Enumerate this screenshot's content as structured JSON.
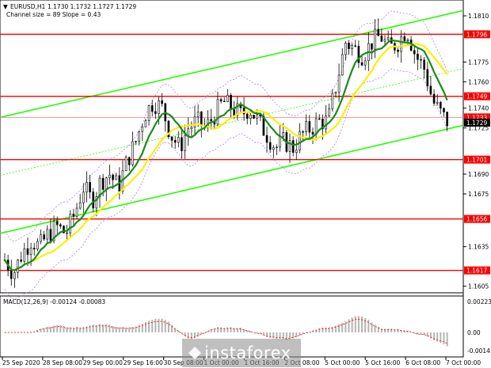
{
  "header": {
    "symbol": "EURUSD,H1",
    "ohlc": "1.1730 1.1732 1.1727 1.1729",
    "channel_text": "Channel size = 89 Slope = 0.43"
  },
  "macd": {
    "label": "MACD(12,26,9) -0.00124 -0.00083",
    "ticks": [
      "0.00223",
      "0.00",
      "-0.0014"
    ]
  },
  "watermark": {
    "brand": "instaforex"
  },
  "colors": {
    "candle": "#000000",
    "level": "#ff0000",
    "channel": "#22ff00",
    "ma_fast": "#1a8a1a",
    "ma_slow": "#ffee00",
    "bollinger": "#b47fd8",
    "macd_hist": "#b4b4b4",
    "macd_signal": "#ff0000",
    "current_price": "#000000"
  },
  "chart_data": {
    "type": "candlestick",
    "title": "",
    "xlabel": "",
    "ylabel": "",
    "ylim": [
      1.16,
      1.1822
    ],
    "y_ticks": [
      "1.1810",
      "1.1775",
      "1.1760",
      "1.1740",
      "1.1725",
      "1.1690",
      "1.1675",
      "1.1635",
      "1.1605"
    ],
    "x_ticks": [
      "25 Sep 2020",
      "28 Sep 08:00",
      "29 Sep 00:00",
      "29 Sep 16:00",
      "30 Sep 08:00",
      "1 Oct 00:00",
      "1 Oct 16:00",
      "2 Oct 08:00",
      "5 Oct 00:00",
      "5 Oct 16:00",
      "6 Oct 08:00",
      "7 Oct 00:00"
    ],
    "levels": [
      {
        "label": "1.1796",
        "value": 1.1796
      },
      {
        "label": "1.1749",
        "value": 1.1749
      },
      {
        "label": "1.1733",
        "value": 1.1733
      },
      {
        "label": "1.1701",
        "value": 1.1701
      },
      {
        "label": "1.1656",
        "value": 1.1656
      },
      {
        "label": "1.1617",
        "value": 1.1617
      }
    ],
    "current_price": {
      "label": "1.1729",
      "value": 1.1729
    },
    "close_path": [
      [
        0,
        1.1625
      ],
      [
        8,
        1.1615
      ],
      [
        16,
        1.163
      ],
      [
        24,
        1.164
      ],
      [
        32,
        1.1635
      ],
      [
        40,
        1.1645
      ],
      [
        48,
        1.165
      ],
      [
        56,
        1.1645
      ],
      [
        64,
        1.166
      ],
      [
        72,
        1.168
      ],
      [
        80,
        1.167
      ],
      [
        88,
        1.1685
      ],
      [
        96,
        1.169
      ],
      [
        104,
        1.168
      ],
      [
        112,
        1.17
      ],
      [
        120,
        1.1715
      ],
      [
        128,
        1.1735
      ],
      [
        136,
        1.1745
      ],
      [
        144,
        1.174
      ],
      [
        152,
        1.172
      ],
      [
        160,
        1.171
      ],
      [
        168,
        1.1725
      ],
      [
        176,
        1.173
      ],
      [
        184,
        1.1725
      ],
      [
        192,
        1.1735
      ],
      [
        200,
        1.1745
      ],
      [
        208,
        1.174
      ],
      [
        216,
        1.1735
      ],
      [
        224,
        1.174
      ],
      [
        232,
        1.173
      ],
      [
        240,
        1.172
      ],
      [
        248,
        1.171
      ],
      [
        256,
        1.1715
      ],
      [
        264,
        1.171
      ],
      [
        272,
        1.172
      ],
      [
        280,
        1.1725
      ],
      [
        288,
        1.173
      ],
      [
        296,
        1.173
      ],
      [
        304,
        1.176
      ],
      [
        312,
        1.179
      ],
      [
        320,
        1.1785
      ],
      [
        328,
        1.178
      ],
      [
        336,
        1.179
      ],
      [
        344,
        1.1795
      ],
      [
        352,
        1.1785
      ],
      [
        360,
        1.179
      ],
      [
        368,
        1.18
      ],
      [
        376,
        1.178
      ],
      [
        384,
        1.177
      ],
      [
        392,
        1.1745
      ],
      [
        400,
        1.1735
      ],
      [
        406,
        1.1729
      ]
    ]
  }
}
